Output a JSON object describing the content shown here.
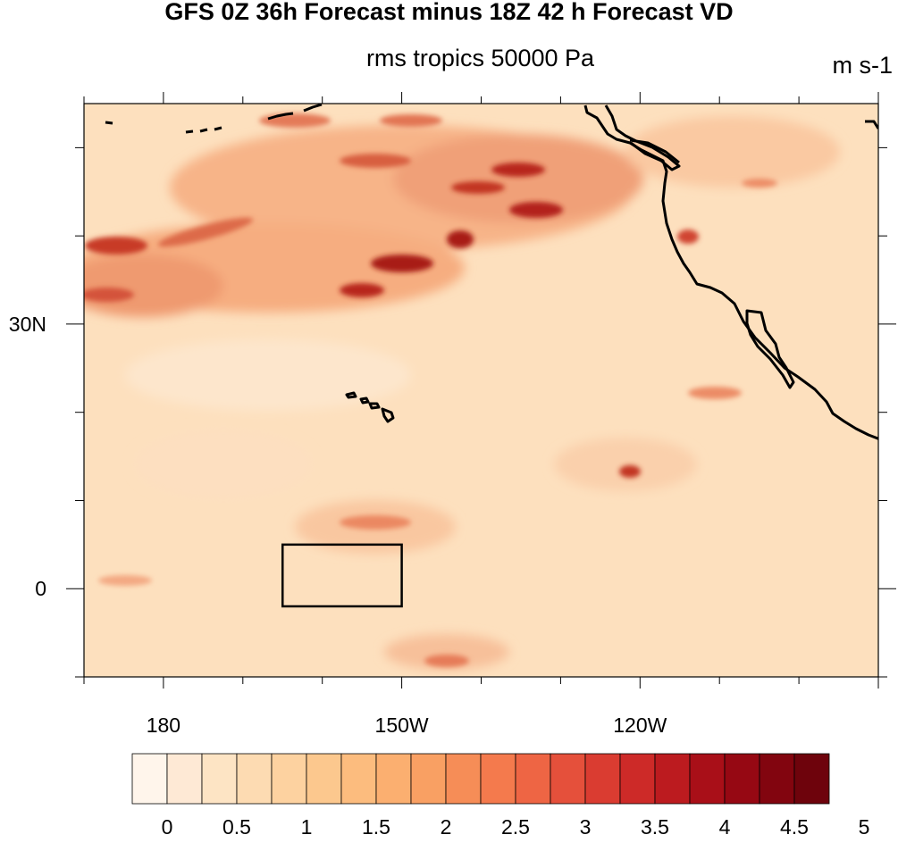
{
  "title": "GFS 0Z 36h Forecast minus 18Z 42 h Forecast VD",
  "subtitle": "rms tropics 50000 Pa",
  "units": "m s-1",
  "map": {
    "projection": "cylindrical equidistant",
    "lon_range": [
      170,
      -90
    ],
    "lat_range": [
      -10,
      55
    ],
    "x_tick_labels": [
      {
        "label": "180",
        "lon": 180
      },
      {
        "label": "150W",
        "lon": -150
      },
      {
        "label": "120W",
        "lon": -120
      }
    ],
    "y_tick_labels": [
      {
        "label": "30N",
        "lat": 30
      },
      {
        "label": "0",
        "lat": 0
      }
    ],
    "box": {
      "lon": [
        -165,
        -150
      ],
      "lat": [
        -2,
        5
      ]
    },
    "coastline_color": "#000000",
    "field_colormap": "white-orange-red"
  },
  "colorbar": {
    "labels": [
      "0",
      "0.5",
      "1",
      "1.5",
      "2",
      "2.5",
      "3",
      "3.5",
      "4",
      "4.5",
      "5"
    ],
    "colors": [
      "#fff5eb",
      "#fee9d5",
      "#fde4c4",
      "#fddbb2",
      "#fdd2a0",
      "#fcc88e",
      "#fcbc7e",
      "#fbaf70",
      "#f9a063",
      "#f68d57",
      "#f47a4d",
      "#ee6544",
      "#e5503b",
      "#da3c31",
      "#cd2a28",
      "#bc1b1f",
      "#a90f18",
      "#960813",
      "#82050f",
      "#6e030c"
    ]
  }
}
